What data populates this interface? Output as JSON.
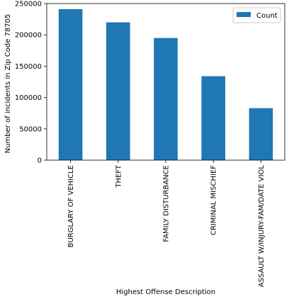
{
  "chart_data": {
    "type": "bar",
    "xlabel": "Highest Offense Description",
    "ylabel": "Number of incidents in Zip Code 78705",
    "categories": [
      "BURGLARY OF VEHICLE",
      "THEFT",
      "FAMILY DISTURBANCE",
      "CRIMINAL MISCHIEF",
      "ASSAULT W/INJURY-FAM/DATE VIOL"
    ],
    "series": [
      {
        "name": "Count",
        "color": "#1f77b4",
        "values": [
          241000,
          220000,
          195000,
          134000,
          83000
        ]
      }
    ],
    "ylim": [
      0,
      250000
    ],
    "yticks": [
      0,
      50000,
      100000,
      150000,
      200000,
      250000
    ],
    "ytick_labels": [
      "0",
      "50000",
      "100000",
      "150000",
      "200000",
      "250000"
    ],
    "grid": false,
    "legend_position": "top-right"
  }
}
